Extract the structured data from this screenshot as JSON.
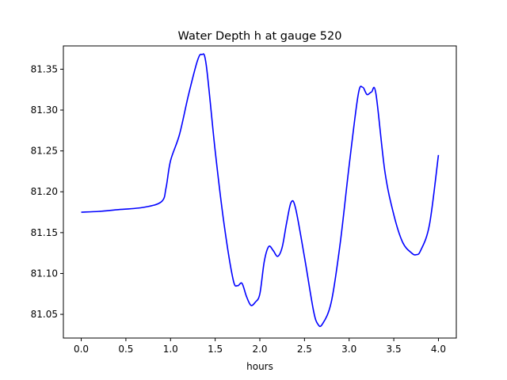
{
  "chart_data": {
    "type": "line",
    "title": "Water Depth h at gauge 520",
    "xlabel": "hours",
    "ylabel": "",
    "xlim": [
      -0.2,
      4.2
    ],
    "ylim": [
      81.021,
      81.3785
    ],
    "xticks": [
      "0.0",
      "0.5",
      "1.0",
      "1.5",
      "2.0",
      "2.5",
      "3.0",
      "3.5",
      "4.0"
    ],
    "yticks": [
      "81.05",
      "81.10",
      "81.15",
      "81.20",
      "81.25",
      "81.30",
      "81.35"
    ],
    "grid": false,
    "legend": "none",
    "series": [
      {
        "color": "#0000ff",
        "x": [
          0.0,
          0.2,
          0.4,
          0.7,
          0.9,
          0.95,
          1.0,
          1.1,
          1.2,
          1.3,
          1.35,
          1.4,
          1.5,
          1.6,
          1.7,
          1.75,
          1.8,
          1.85,
          1.9,
          1.95,
          2.0,
          2.05,
          2.1,
          2.15,
          2.2,
          2.25,
          2.3,
          2.35,
          2.4,
          2.5,
          2.6,
          2.65,
          2.7,
          2.8,
          2.9,
          3.0,
          3.1,
          3.15,
          3.2,
          3.25,
          3.3,
          3.4,
          3.5,
          3.6,
          3.7,
          3.75,
          3.8,
          3.9,
          4.0
        ],
        "y": [
          81.175,
          81.176,
          81.178,
          81.181,
          81.188,
          81.205,
          81.238,
          81.27,
          81.318,
          81.36,
          81.368,
          81.355,
          81.25,
          81.16,
          81.093,
          81.085,
          81.088,
          81.072,
          81.061,
          81.065,
          81.075,
          81.115,
          81.133,
          81.128,
          81.121,
          81.132,
          81.162,
          81.187,
          81.18,
          81.12,
          81.055,
          81.038,
          81.038,
          81.065,
          81.137,
          81.232,
          81.318,
          81.328,
          81.319,
          81.322,
          81.32,
          81.225,
          81.172,
          81.138,
          81.125,
          81.123,
          81.128,
          81.16,
          81.245
        ]
      }
    ]
  }
}
